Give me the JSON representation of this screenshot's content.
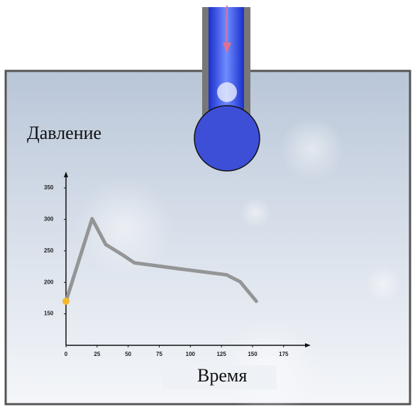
{
  "chart_data": {
    "type": "line",
    "y_label": "Давление",
    "x_label": "Время",
    "x": [
      0,
      21,
      32,
      46,
      55,
      89,
      129,
      140,
      153
    ],
    "series": [
      {
        "color": "#8c8c8c",
        "values": [
          170,
          301,
          260,
          243,
          231,
          222,
          212,
          201,
          170
        ]
      }
    ],
    "xlim": [
      0,
      195
    ],
    "ylim": [
      100,
      375
    ],
    "xticks": [
      0,
      25,
      50,
      75,
      100,
      125,
      150,
      175
    ],
    "yticks": [
      150,
      200,
      250,
      300,
      350
    ]
  }
}
